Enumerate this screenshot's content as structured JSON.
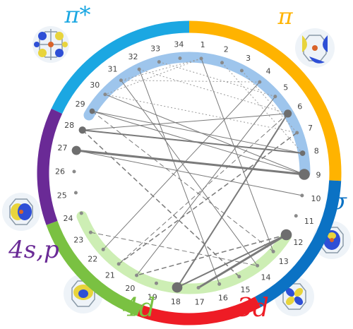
{
  "groups": [
    {
      "id": "pi-star",
      "label": "π*",
      "color": "#1ba7e2"
    },
    {
      "id": "pi",
      "label": "π",
      "color": "#ffb300"
    },
    {
      "id": "sigma",
      "label": "σ",
      "color": "#0b72c4"
    },
    {
      "id": "3d",
      "label": "3d",
      "color": "#ee1c25"
    },
    {
      "id": "4d",
      "label": "4d",
      "color": "#7ac142"
    },
    {
      "id": "4sp",
      "label": "4s,p",
      "color": "#6a2a96"
    }
  ],
  "nodes": [
    "1",
    "2",
    "3",
    "4",
    "5",
    "6",
    "7",
    "8",
    "9",
    "10",
    "11",
    "12",
    "13",
    "14",
    "15",
    "16",
    "17",
    "18",
    "19",
    "20",
    "21",
    "22",
    "23",
    "24",
    "25",
    "26",
    "27",
    "28",
    "29",
    "30",
    "31",
    "32",
    "33",
    "34"
  ],
  "inner_bands": [
    {
      "name": "upper-band",
      "color": "#9ec5ec"
    },
    {
      "name": "lower-band",
      "color": "#cdeeb4"
    }
  ],
  "edges": [
    {
      "from": 9,
      "to": 27,
      "weight": 3,
      "style": "solid"
    },
    {
      "from": 12,
      "to": 17,
      "weight": 3,
      "style": "solid"
    },
    {
      "from": 12,
      "to": 18,
      "weight": 2,
      "style": "solid"
    },
    {
      "from": 6,
      "to": 18,
      "weight": 2,
      "style": "solid"
    },
    {
      "from": 28,
      "to": 8,
      "weight": 2,
      "style": "solid"
    },
    {
      "from": 29,
      "to": 8,
      "weight": 1,
      "style": "solid"
    },
    {
      "from": 29,
      "to": 9,
      "weight": 1,
      "style": "solid"
    },
    {
      "from": 6,
      "to": 28,
      "weight": 1,
      "style": "solid"
    },
    {
      "from": 30,
      "to": 9,
      "weight": 1,
      "style": "solid"
    },
    {
      "from": 28,
      "to": 8,
      "weight": 1.5,
      "style": "dashed"
    },
    {
      "from": 28,
      "to": 15,
      "weight": 1.5,
      "style": "dashed"
    },
    {
      "from": 7,
      "to": 21,
      "weight": 1.5,
      "style": "dashed"
    },
    {
      "from": 12,
      "to": 20,
      "weight": 1.5,
      "style": "dashed"
    },
    {
      "from": 6,
      "to": 21,
      "weight": 1,
      "style": "dashed"
    },
    {
      "from": 5,
      "to": 20,
      "weight": 1,
      "style": "solid"
    },
    {
      "from": 4,
      "to": 22,
      "weight": 1,
      "style": "solid"
    },
    {
      "from": 31,
      "to": 14,
      "weight": 1,
      "style": "solid"
    },
    {
      "from": 32,
      "to": 16,
      "weight": 1,
      "style": "solid"
    },
    {
      "from": 1,
      "to": 13,
      "weight": 1,
      "style": "solid"
    },
    {
      "from": 27,
      "to": 10,
      "weight": 1,
      "style": "solid"
    },
    {
      "from": 23,
      "to": 14,
      "weight": 1,
      "style": "dashed"
    },
    {
      "from": 29,
      "to": 13,
      "weight": 1,
      "style": "dashed"
    },
    {
      "from": 3,
      "to": 7,
      "weight": 1,
      "style": "dotted"
    },
    {
      "from": 2,
      "to": 8,
      "weight": 1,
      "style": "dotted"
    },
    {
      "from": 33,
      "to": 5,
      "weight": 1,
      "style": "dotted"
    },
    {
      "from": 32,
      "to": 6,
      "weight": 1,
      "style": "dotted"
    },
    {
      "from": 31,
      "to": 4,
      "weight": 1,
      "style": "dotted"
    },
    {
      "from": 30,
      "to": 7,
      "weight": 1,
      "style": "dotted"
    },
    {
      "from": 1,
      "to": 30,
      "weight": 1,
      "style": "dotted"
    },
    {
      "from": 1,
      "to": 31,
      "weight": 1,
      "style": "dotted"
    }
  ],
  "node_sizes": [
    {
      "node": 9,
      "size": 3
    },
    {
      "node": 27,
      "size": 2.4
    },
    {
      "node": 12,
      "size": 3
    },
    {
      "node": 18,
      "size": 2.8
    },
    {
      "node": 6,
      "size": 2
    },
    {
      "node": 28,
      "size": 1.8
    },
    {
      "node": 29,
      "size": 1.2
    },
    {
      "node": 8,
      "size": 1.2
    }
  ]
}
